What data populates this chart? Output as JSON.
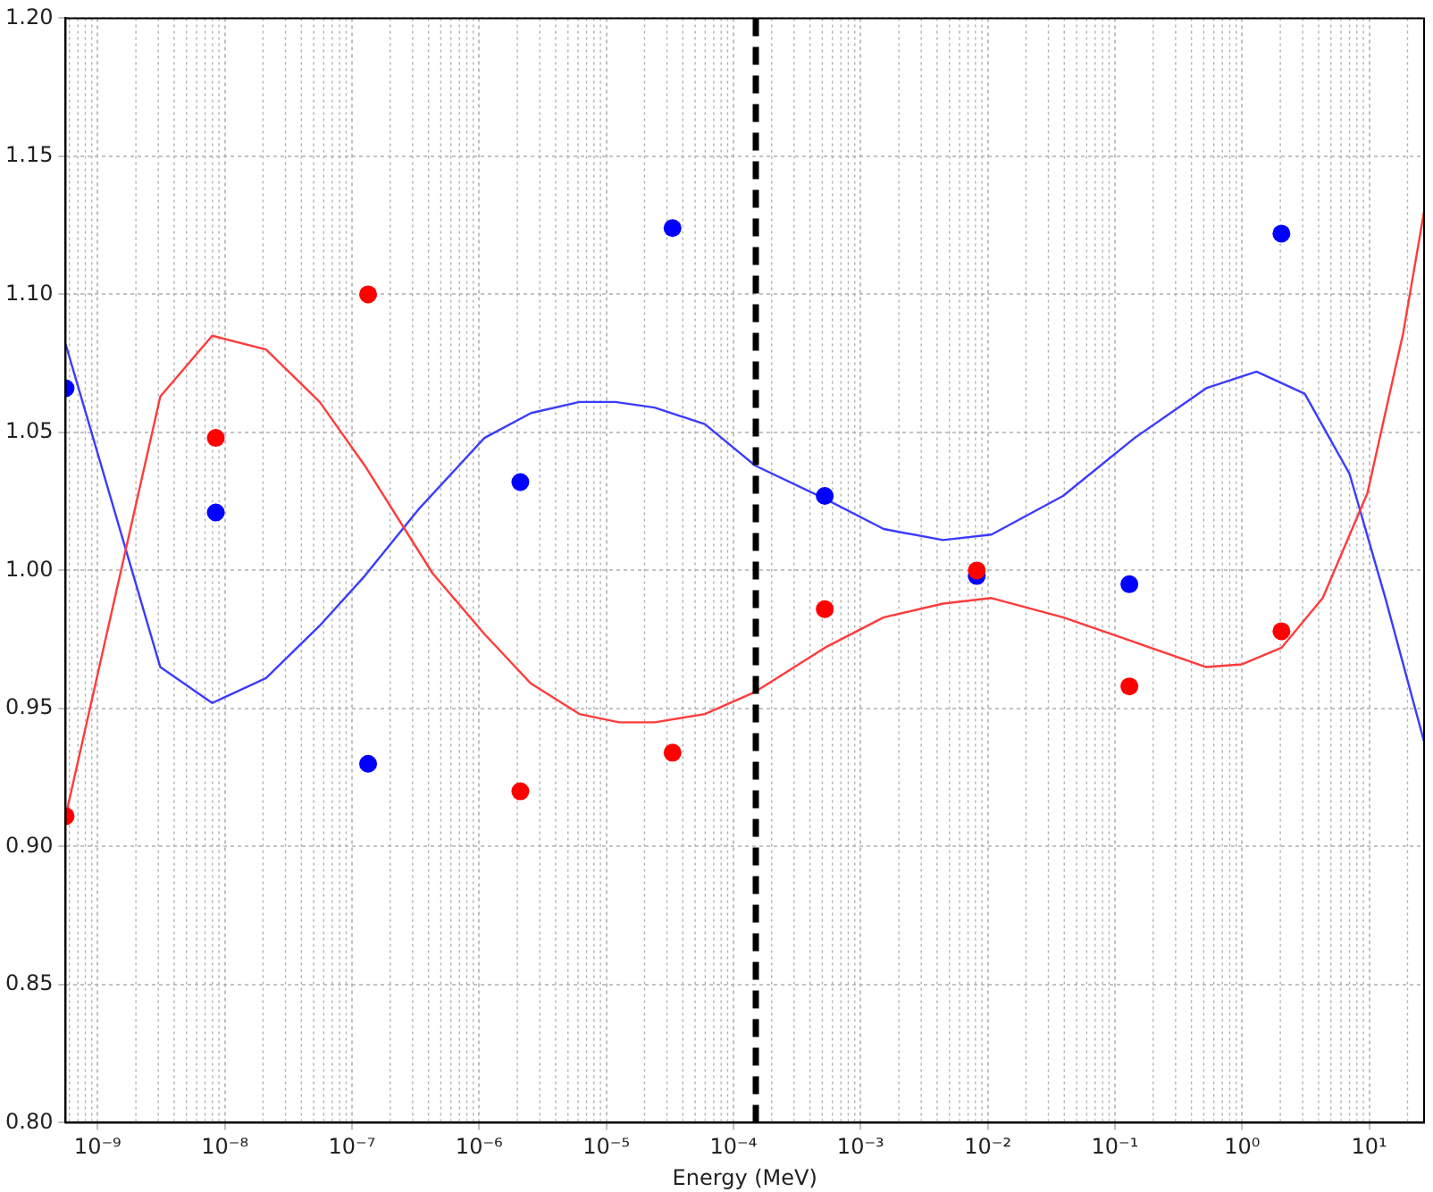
{
  "chart_data": {
    "type": "scatter",
    "xlabel": "Energy (MeV)",
    "log": "x",
    "grid": true,
    "legend": false,
    "xlim": [
      5.6e-10,
      27
    ],
    "ylim": [
      0.8,
      1.2
    ],
    "xticks": [
      {
        "value": 1e-09,
        "label": "10⁻⁹"
      },
      {
        "value": 1e-08,
        "label": "10⁻⁸"
      },
      {
        "value": 1e-07,
        "label": "10⁻⁷"
      },
      {
        "value": 1e-06,
        "label": "10⁻⁶"
      },
      {
        "value": 1e-05,
        "label": "10⁻⁵"
      },
      {
        "value": 0.0001,
        "label": "10⁻⁴"
      },
      {
        "value": 0.001,
        "label": "10⁻³"
      },
      {
        "value": 0.01,
        "label": "10⁻²"
      },
      {
        "value": 0.1,
        "label": "10⁻¹"
      },
      {
        "value": 1,
        "label": "10⁰"
      },
      {
        "value": 10,
        "label": "10¹"
      }
    ],
    "yticks": [
      {
        "value": 0.8,
        "label": "0.80"
      },
      {
        "value": 0.85,
        "label": "0.85"
      },
      {
        "value": 0.9,
        "label": "0.90"
      },
      {
        "value": 0.95,
        "label": "0.95"
      },
      {
        "value": 1.0,
        "label": "1.00"
      },
      {
        "value": 1.05,
        "label": "1.05"
      },
      {
        "value": 1.1,
        "label": "1.10"
      },
      {
        "value": 1.15,
        "label": "1.15"
      },
      {
        "value": 1.2,
        "label": "1.20"
      }
    ],
    "ref_lines": [
      {
        "axis": "x",
        "value": 0.00015,
        "color": "#000000",
        "line_style": "dashed"
      }
    ],
    "series": [
      {
        "type": "line",
        "color": "#ff3b3b",
        "marker": "none",
        "x": [
          5.6e-10,
          3.11e-09,
          7.96e-09,
          2.11e-08,
          5.58e-08,
          1.26e-07,
          4.3e-07,
          1.1e-06,
          2.56e-06,
          6.15e-06,
          1.26e-05,
          2.4e-05,
          5.96e-05,
          0.000148,
          0.000523,
          0.00152,
          0.00445,
          0.0107,
          0.0391,
          0.143,
          0.523,
          1,
          2.04,
          4.31,
          9.68,
          18.5,
          27
        ],
        "values": [
          0.911,
          1.063,
          1.085,
          1.08,
          1.061,
          1.038,
          0.999,
          0.977,
          0.959,
          0.948,
          0.945,
          0.945,
          0.948,
          0.956,
          0.972,
          0.983,
          0.988,
          0.99,
          0.983,
          0.974,
          0.965,
          0.966,
          0.972,
          0.99,
          1.028,
          1.086,
          1.13
        ]
      },
      {
        "type": "line",
        "color": "#3b3bff",
        "marker": "none",
        "x": [
          5.6e-10,
          3.11e-09,
          7.96e-09,
          2.11e-08,
          5.58e-08,
          1.26e-07,
          3.32e-07,
          1.1e-06,
          2.56e-06,
          6.15e-06,
          1.18e-05,
          2.4e-05,
          5.96e-05,
          0.000148,
          0.000523,
          0.00152,
          0.00445,
          0.0107,
          0.0391,
          0.143,
          0.523,
          1.3,
          3.11,
          7.0,
          13.4,
          27
        ],
        "values": [
          1.082,
          0.965,
          0.952,
          0.961,
          0.98,
          0.998,
          1.022,
          1.048,
          1.057,
          1.061,
          1.061,
          1.059,
          1.053,
          1.038,
          1.026,
          1.015,
          1.011,
          1.013,
          1.027,
          1.048,
          1.066,
          1.072,
          1.064,
          1.035,
          0.99,
          0.938
        ]
      },
      {
        "type": "scatter",
        "color": "#ff0000",
        "marker": "circle",
        "x": [
          5.6e-10,
          8.5e-09,
          1.34e-07,
          2.11e-06,
          3.32e-05,
          0.000523,
          0.0082,
          0.13,
          2.04
        ],
        "values": [
          0.911,
          1.048,
          1.1,
          0.92,
          0.934,
          0.986,
          1.0,
          0.958,
          0.978
        ]
      },
      {
        "type": "scatter",
        "color": "#0000ff",
        "marker": "circle",
        "x": [
          5.6e-10,
          8.5e-09,
          1.34e-07,
          2.11e-06,
          3.32e-05,
          0.000523,
          0.0082,
          0.13,
          2.04
        ],
        "values": [
          1.066,
          1.021,
          0.93,
          1.032,
          1.124,
          1.027,
          0.998,
          0.995,
          1.122
        ]
      }
    ]
  }
}
